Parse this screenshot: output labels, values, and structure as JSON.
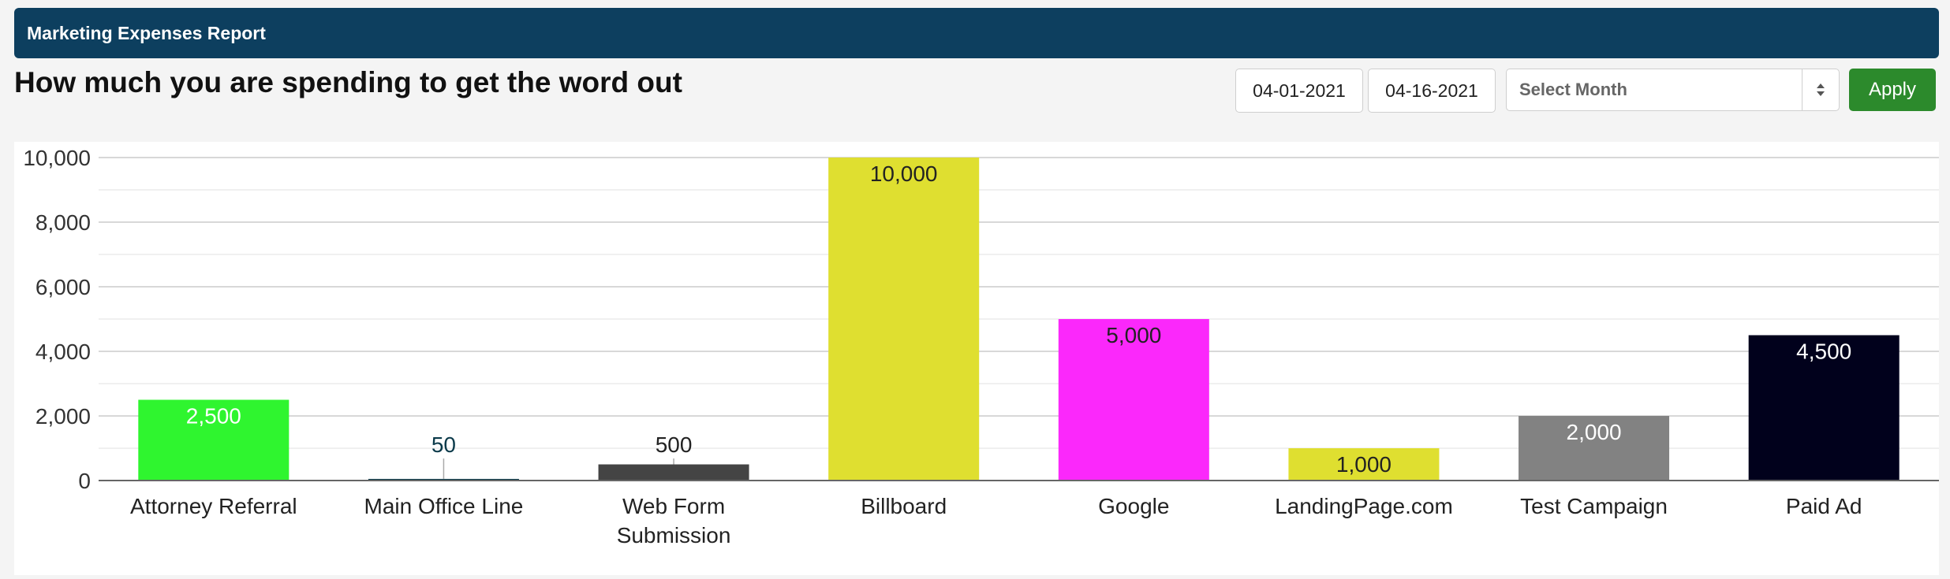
{
  "header": {
    "title": "Marketing Expenses Report"
  },
  "heading": "How much you are spending to get the word out",
  "filters": {
    "start_date": "04-01-2021",
    "end_date": "04-16-2021",
    "month_select": "Select Month",
    "apply_label": "Apply"
  },
  "chart_data": {
    "type": "bar",
    "title": "",
    "xlabel": "",
    "ylabel": "",
    "ylim": [
      0,
      10000
    ],
    "yticks": [
      {
        "value": 0,
        "label": "0"
      },
      {
        "value": 2000,
        "label": "2,000"
      },
      {
        "value": 4000,
        "label": "4,000"
      },
      {
        "value": 6000,
        "label": "6,000"
      },
      {
        "value": 8000,
        "label": "8,000"
      },
      {
        "value": 10000,
        "label": "10,000"
      }
    ],
    "grid": true,
    "categories": [
      [
        "Attorney Referral"
      ],
      [
        "Main Office Line"
      ],
      [
        "Web Form",
        "Submission"
      ],
      [
        "Billboard"
      ],
      [
        "Google"
      ],
      [
        "LandingPage.com"
      ],
      [
        "Test Campaign"
      ],
      [
        "Paid Ad"
      ]
    ],
    "values": [
      2500,
      50,
      500,
      10000,
      5000,
      1000,
      2000,
      4500
    ],
    "value_labels": [
      "2,500",
      "50",
      "500",
      "10,000",
      "5,000",
      "1,000",
      "2,000",
      "4,500"
    ],
    "colors": [
      "#2ff52f",
      "#0b3a4a",
      "#444444",
      "#dfdf30",
      "#fb28fb",
      "#dfdf30",
      "#828282",
      "#01011c"
    ],
    "label_colors": [
      "#ffffff",
      "#0b3a4a",
      "#222222",
      "#222222",
      "#222222",
      "#222222",
      "#ffffff",
      "#ffffff"
    ]
  }
}
